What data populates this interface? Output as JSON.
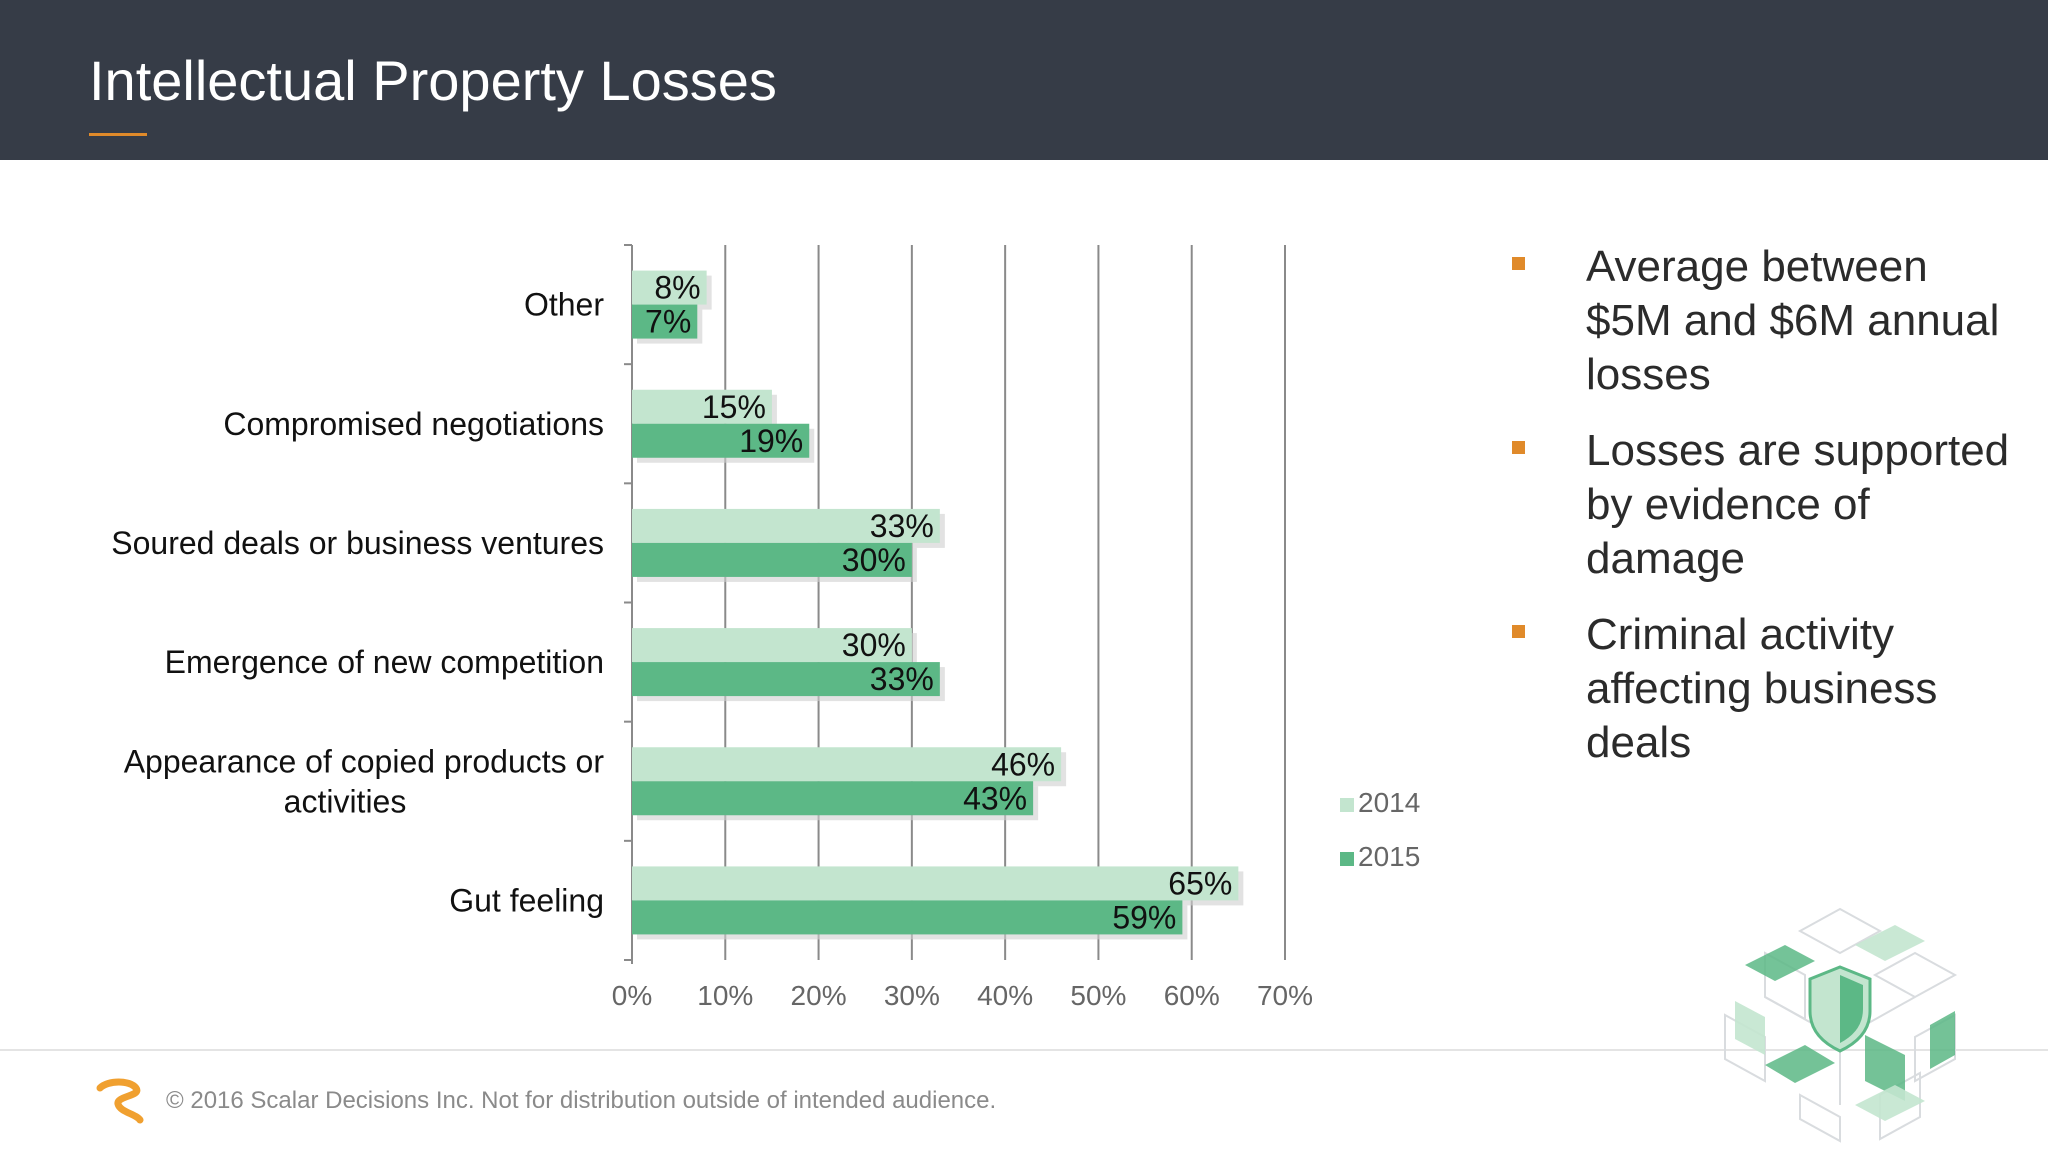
{
  "slide": {
    "title": "Intellectual Property Losses",
    "accent_color": "#e08a2a",
    "header_color": "#363c47"
  },
  "chart_data": {
    "type": "bar",
    "orientation": "horizontal",
    "categories": [
      "Other",
      "Compromised negotiations",
      "Soured deals or business ventures",
      "Emergence of new competition",
      "Appearance of copied products or activities",
      "Gut feeling"
    ],
    "category_lines": [
      [
        "Other"
      ],
      [
        "Compromised negotiations"
      ],
      [
        "Soured deals or business ventures"
      ],
      [
        "Emergence of new competition"
      ],
      [
        "Appearance of copied products or",
        "activities"
      ],
      [
        "Gut feeling"
      ]
    ],
    "series": [
      {
        "name": "2014",
        "values": [
          8,
          15,
          33,
          30,
          46,
          65
        ],
        "labels": [
          "8%",
          "15%",
          "33%",
          "30%",
          "46%",
          "65%"
        ],
        "color": "#c3e5cf"
      },
      {
        "name": "2015",
        "values": [
          7,
          19,
          30,
          33,
          43,
          59
        ],
        "labels": [
          "7%",
          "19%",
          "30%",
          "33%",
          "43%",
          "59%"
        ],
        "color": "#5cb886"
      }
    ],
    "xlim": [
      0,
      70
    ],
    "xticks": [
      0,
      10,
      20,
      30,
      40,
      50,
      60,
      70
    ],
    "xtick_labels": [
      "0%",
      "10%",
      "20%",
      "30%",
      "40%",
      "50%",
      "60%",
      "70%"
    ],
    "grid": true,
    "legend": "right"
  },
  "bullets": [
    "Average between $5M and $6M annual losses",
    "Losses are supported by evidence of damage",
    "Criminal activity affecting business deals"
  ],
  "footer": {
    "text": "© 2016 Scalar Decisions Inc. Not for distribution outside of intended audience."
  },
  "icons": {
    "logo": "scalar-logo-icon",
    "decoration": "shield-cube-icon"
  }
}
